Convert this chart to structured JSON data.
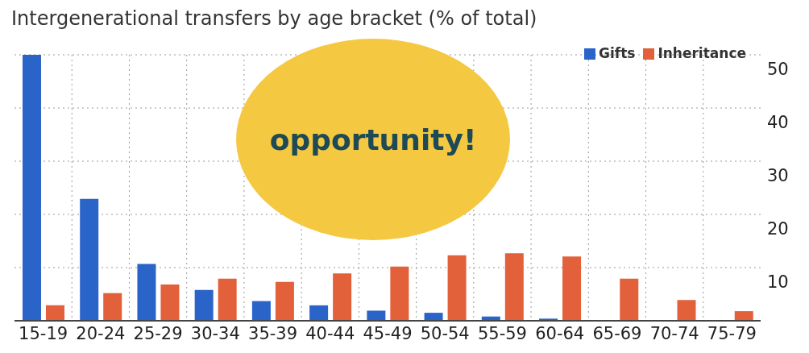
{
  "chart_data": {
    "type": "bar",
    "title": "Intergenerational transfers by age bracket (% of total)",
    "categories": [
      "15-19",
      "20-24",
      "25-29",
      "30-34",
      "35-39",
      "40-44",
      "45-49",
      "50-54",
      "55-59",
      "60-64",
      "65-69",
      "70-74",
      "75-79"
    ],
    "series": [
      {
        "name": "Gifts",
        "color": "#2a64c8",
        "values": [
          50,
          22.9,
          10.7,
          5.8,
          3.7,
          2.9,
          1.9,
          1.5,
          0.8,
          0.4,
          0,
          0,
          0
        ]
      },
      {
        "name": "Inheritance",
        "color": "#e2603a",
        "values": [
          2.9,
          5.2,
          6.8,
          7.9,
          7.3,
          8.9,
          10.2,
          12.3,
          12.7,
          12.1,
          7.9,
          3.9,
          1.8
        ]
      }
    ],
    "ylim": [
      0,
      50
    ],
    "yticks": [
      10,
      20,
      30,
      40,
      50
    ],
    "grid": true,
    "legend": "top right",
    "annotations": [
      "opportunity!"
    ]
  }
}
